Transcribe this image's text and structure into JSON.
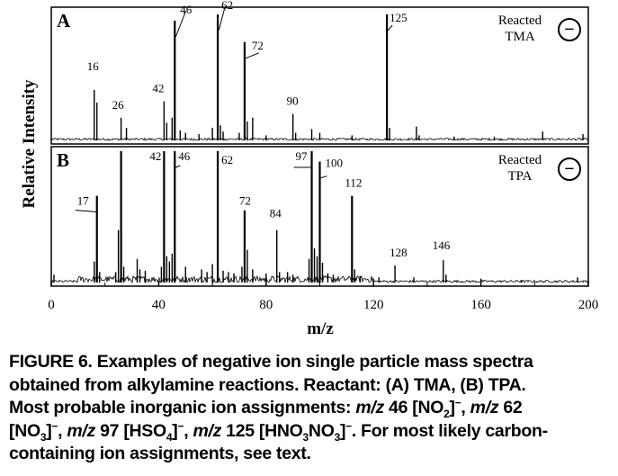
{
  "chart_data": {
    "type": "line",
    "xlabel": "m/z",
    "ylabel": "Relative Intensity",
    "xlim": [
      0,
      200
    ],
    "x_ticks": [
      "0",
      "40",
      "80",
      "120",
      "160",
      "200"
    ],
    "panels": [
      {
        "label": "A",
        "tag_line1": "Reacted",
        "tag_line2": "TMA",
        "ion_symbol": "−",
        "peaks": [
          {
            "x": 16,
            "y": 0.4,
            "label": "16"
          },
          {
            "x": 17,
            "y": 0.3,
            "label": ""
          },
          {
            "x": 26,
            "y": 0.18,
            "label": "26"
          },
          {
            "x": 28,
            "y": 0.1,
            "label": ""
          },
          {
            "x": 42,
            "y": 0.31,
            "label": "42"
          },
          {
            "x": 43,
            "y": 0.14,
            "label": ""
          },
          {
            "x": 45,
            "y": 0.18,
            "label": ""
          },
          {
            "x": 46,
            "y": 0.95,
            "label": "46"
          },
          {
            "x": 48,
            "y": 0.08,
            "label": ""
          },
          {
            "x": 50,
            "y": 0.06,
            "label": ""
          },
          {
            "x": 55,
            "y": 0.05,
            "label": ""
          },
          {
            "x": 60,
            "y": 0.1,
            "label": ""
          },
          {
            "x": 62,
            "y": 1.0,
            "label": "62"
          },
          {
            "x": 63,
            "y": 0.12,
            "label": ""
          },
          {
            "x": 64,
            "y": 0.07,
            "label": ""
          },
          {
            "x": 70,
            "y": 0.06,
            "label": ""
          },
          {
            "x": 72,
            "y": 0.78,
            "label": "72"
          },
          {
            "x": 73,
            "y": 0.15,
            "label": ""
          },
          {
            "x": 75,
            "y": 0.18,
            "label": ""
          },
          {
            "x": 80,
            "y": 0.04,
            "label": ""
          },
          {
            "x": 90,
            "y": 0.21,
            "label": "90"
          },
          {
            "x": 91,
            "y": 0.06,
            "label": ""
          },
          {
            "x": 97,
            "y": 0.09,
            "label": ""
          },
          {
            "x": 100,
            "y": 0.06,
            "label": ""
          },
          {
            "x": 112,
            "y": 0.04,
            "label": ""
          },
          {
            "x": 125,
            "y": 1.0,
            "label": "125"
          },
          {
            "x": 126,
            "y": 0.1,
            "label": ""
          },
          {
            "x": 136,
            "y": 0.11,
            "label": ""
          },
          {
            "x": 137,
            "y": 0.04,
            "label": ""
          },
          {
            "x": 150,
            "y": 0.03,
            "label": ""
          },
          {
            "x": 165,
            "y": 0.03,
            "label": ""
          },
          {
            "x": 183,
            "y": 0.07,
            "label": ""
          },
          {
            "x": 198,
            "y": 0.05,
            "label": ""
          }
        ]
      },
      {
        "label": "B",
        "tag_line1": "Reacted",
        "tag_line2": "TPA",
        "ion_symbol": "−",
        "peaks": [
          {
            "x": 1,
            "y": 0.06,
            "label": ""
          },
          {
            "x": 16,
            "y": 0.16,
            "label": ""
          },
          {
            "x": 17,
            "y": 0.66,
            "label": "17"
          },
          {
            "x": 18,
            "y": 0.08,
            "label": ""
          },
          {
            "x": 24,
            "y": 0.08,
            "label": ""
          },
          {
            "x": 25,
            "y": 0.4,
            "label": ""
          },
          {
            "x": 26,
            "y": 1.0,
            "label": ""
          },
          {
            "x": 27,
            "y": 0.12,
            "label": ""
          },
          {
            "x": 32,
            "y": 0.18,
            "label": ""
          },
          {
            "x": 33,
            "y": 0.1,
            "label": ""
          },
          {
            "x": 35,
            "y": 0.09,
            "label": ""
          },
          {
            "x": 41,
            "y": 0.12,
            "label": ""
          },
          {
            "x": 42,
            "y": 1.0,
            "label": "42"
          },
          {
            "x": 43,
            "y": 0.2,
            "label": ""
          },
          {
            "x": 44,
            "y": 0.16,
            "label": ""
          },
          {
            "x": 45,
            "y": 0.22,
            "label": ""
          },
          {
            "x": 46,
            "y": 1.0,
            "label": "46"
          },
          {
            "x": 50,
            "y": 0.12,
            "label": ""
          },
          {
            "x": 56,
            "y": 0.1,
            "label": ""
          },
          {
            "x": 58,
            "y": 0.08,
            "label": ""
          },
          {
            "x": 60,
            "y": 0.14,
            "label": ""
          },
          {
            "x": 62,
            "y": 1.0,
            "label": "62"
          },
          {
            "x": 64,
            "y": 0.09,
            "label": ""
          },
          {
            "x": 66,
            "y": 0.08,
            "label": ""
          },
          {
            "x": 68,
            "y": 0.07,
            "label": ""
          },
          {
            "x": 71,
            "y": 0.12,
            "label": ""
          },
          {
            "x": 72,
            "y": 0.55,
            "label": "72"
          },
          {
            "x": 73,
            "y": 0.25,
            "label": ""
          },
          {
            "x": 75,
            "y": 0.1,
            "label": ""
          },
          {
            "x": 80,
            "y": 0.07,
            "label": ""
          },
          {
            "x": 84,
            "y": 0.4,
            "label": "84"
          },
          {
            "x": 85,
            "y": 0.08,
            "label": ""
          },
          {
            "x": 88,
            "y": 0.08,
            "label": ""
          },
          {
            "x": 90,
            "y": 0.06,
            "label": ""
          },
          {
            "x": 96,
            "y": 0.18,
            "label": ""
          },
          {
            "x": 97,
            "y": 1.0,
            "label": "97"
          },
          {
            "x": 98,
            "y": 0.26,
            "label": ""
          },
          {
            "x": 99,
            "y": 0.2,
            "label": ""
          },
          {
            "x": 100,
            "y": 0.92,
            "label": "100"
          },
          {
            "x": 101,
            "y": 0.15,
            "label": ""
          },
          {
            "x": 103,
            "y": 0.07,
            "label": ""
          },
          {
            "x": 105,
            "y": 0.06,
            "label": ""
          },
          {
            "x": 112,
            "y": 0.66,
            "label": "112"
          },
          {
            "x": 113,
            "y": 0.1,
            "label": ""
          },
          {
            "x": 115,
            "y": 0.05,
            "label": ""
          },
          {
            "x": 122,
            "y": 0.04,
            "label": ""
          },
          {
            "x": 128,
            "y": 0.13,
            "label": "128"
          },
          {
            "x": 135,
            "y": 0.04,
            "label": ""
          },
          {
            "x": 146,
            "y": 0.17,
            "label": "146"
          },
          {
            "x": 147,
            "y": 0.06,
            "label": ""
          },
          {
            "x": 160,
            "y": 0.03,
            "label": ""
          },
          {
            "x": 175,
            "y": 0.02,
            "label": ""
          },
          {
            "x": 196,
            "y": 0.04,
            "label": ""
          }
        ]
      }
    ]
  },
  "caption": {
    "line1": "FIGURE 6.  Examples of negative ion single particle mass spectra",
    "line2": "obtained from alkylamine reactions. Reactant:  (A) TMA, (B) TPA.",
    "line3_a": "Most probable inorganic ion assignments:  ",
    "mz": "m/z",
    "line3_b": " 46 [NO",
    "sub2": "2",
    "minus": "−",
    "line3_c": ", ",
    "line3_d": " 62",
    "line4_a": "[NO",
    "sub3": "3",
    "line4_b": ", ",
    "line4_c": " 97 [HSO",
    "sub4": "4",
    "line4_d": ", ",
    "line4_e": " 125 [HNO",
    "line4_f": "NO",
    "line4_g": ". For most likely carbon-",
    "line5": "containing ion assignments, see text."
  }
}
